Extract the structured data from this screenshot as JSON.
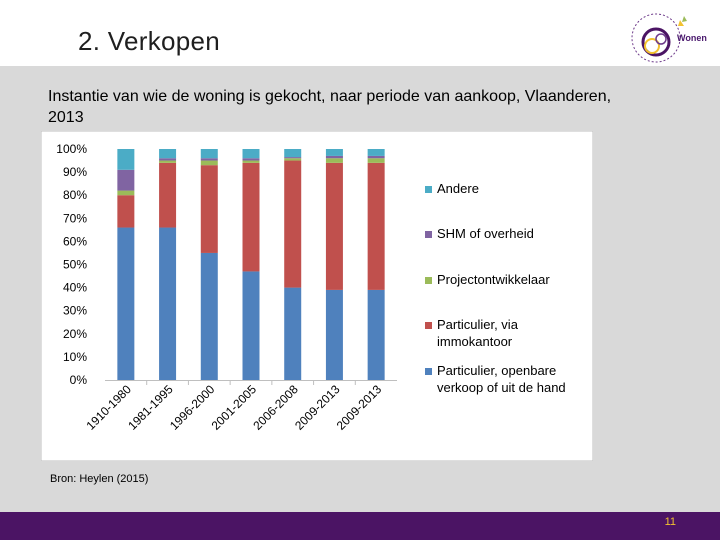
{
  "slide": {
    "title": "2. Verkopen",
    "subtitle": "Instantie van wie de woning is gekocht, naar periode van aankoop, Vlaanderen, 2013",
    "source": "Bron: Heylen (2015)",
    "page_number": "11",
    "logo_text": "Wonen"
  },
  "colors": {
    "header_bg": "#ffffff",
    "content_bg": "#d9d9d9",
    "footer_bg": "#4b1464",
    "page_number": "#f2c230"
  },
  "chart_data": {
    "type": "bar",
    "stacked": true,
    "title": "",
    "xlabel": "",
    "ylabel": "",
    "ylim": [
      0,
      100
    ],
    "y_ticks": [
      "0%",
      "10%",
      "20%",
      "30%",
      "40%",
      "50%",
      "60%",
      "70%",
      "80%",
      "90%",
      "100%"
    ],
    "categories": [
      "1910-1980",
      "1981-1995",
      "1996-2000",
      "2001-2005",
      "2006-2008",
      "2009-2013",
      "2009-2013"
    ],
    "series": [
      {
        "name": "Particulier, openbare verkoop of uit de hand",
        "color": "#4f81bd",
        "values": [
          66,
          66,
          55,
          47,
          40,
          39,
          39
        ]
      },
      {
        "name": "Particulier, via immokantoor",
        "color": "#c0504d",
        "values": [
          14,
          28,
          38,
          47,
          55,
          55,
          55
        ]
      },
      {
        "name": "Projectontwikkelaar",
        "color": "#9bbb59",
        "values": [
          2,
          1,
          2,
          1,
          1,
          2,
          2
        ]
      },
      {
        "name": "SHM of overheid",
        "color": "#8064a2",
        "values": [
          9,
          1,
          1,
          1,
          0.5,
          1,
          1
        ]
      },
      {
        "name": "Andere",
        "color": "#4bacc6",
        "values": [
          9,
          4,
          4,
          4,
          3.5,
          3,
          3
        ]
      }
    ],
    "legend": [
      "Andere",
      "SHM of overheid",
      "Projectontwikkelaar",
      "Particulier, via immokantoor",
      "Particulier, openbare verkoop of uit de hand"
    ],
    "legend_position": "right"
  }
}
